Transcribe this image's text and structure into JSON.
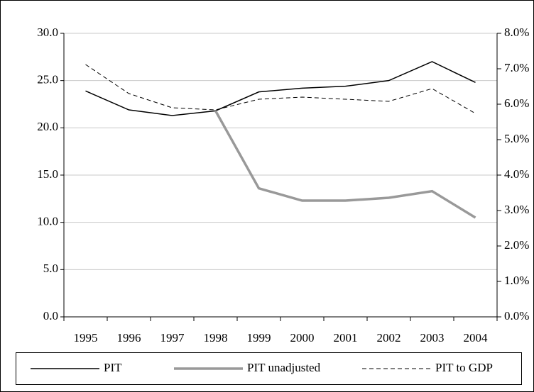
{
  "chart_data": {
    "type": "line",
    "categories": [
      "1995",
      "1996",
      "1997",
      "1998",
      "1999",
      "2000",
      "2001",
      "2002",
      "2003",
      "2004"
    ],
    "series": [
      {
        "name": "PIT",
        "color": "#000000",
        "line_style": "solid",
        "values": [
          23.9,
          21.9,
          21.3,
          21.8,
          23.8,
          24.2,
          24.4,
          25.0,
          27.0,
          24.8
        ]
      },
      {
        "name": "PIT unadjusted",
        "color": "#999999",
        "line_style": "thick",
        "values": [
          null,
          null,
          null,
          21.8,
          13.6,
          12.3,
          12.3,
          12.6,
          13.3,
          10.5
        ]
      },
      {
        "name": "PIT to GDP",
        "color": "#000000",
        "line_style": "dashed",
        "axis": "y2",
        "values": [
          7.12,
          6.3,
          5.9,
          5.84,
          6.14,
          6.2,
          6.14,
          6.08,
          6.44,
          5.74
        ]
      }
    ],
    "ylim": [
      0,
      30
    ],
    "yticks": [
      {
        "value": 0,
        "label": "0.0"
      },
      {
        "value": 5,
        "label": "5.0"
      },
      {
        "value": 10,
        "label": "10.0"
      },
      {
        "value": 15,
        "label": "15.0"
      },
      {
        "value": 20,
        "label": "20.0"
      },
      {
        "value": 25,
        "label": "25.0"
      },
      {
        "value": 30,
        "label": "30.0"
      }
    ],
    "y2lim": [
      0,
      8
    ],
    "y2ticks": [
      {
        "value": 0,
        "label": "0.0%"
      },
      {
        "value": 1,
        "label": "1.0%"
      },
      {
        "value": 2,
        "label": "2.0%"
      },
      {
        "value": 3,
        "label": "3.0%"
      },
      {
        "value": 4,
        "label": "4.0%"
      },
      {
        "value": 5,
        "label": "5.0%"
      },
      {
        "value": 6,
        "label": "6.0%"
      },
      {
        "value": 7,
        "label": "7.0%"
      },
      {
        "value": 8,
        "label": "8.0%"
      }
    ],
    "grid": true,
    "legend": "bottom"
  }
}
